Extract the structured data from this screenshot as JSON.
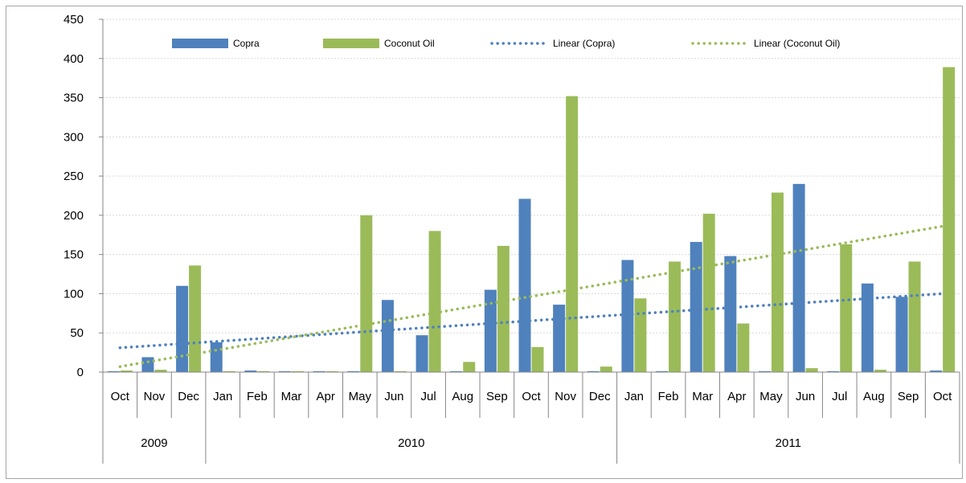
{
  "chart_data": {
    "type": "bar",
    "categories": [
      "Oct",
      "Nov",
      "Dec",
      "Jan",
      "Feb",
      "Mar",
      "Apr",
      "May",
      "Jun",
      "Jul",
      "Aug",
      "Sep",
      "Oct",
      "Nov",
      "Dec",
      "Jan",
      "Feb",
      "Mar",
      "Apr",
      "May",
      "Jun",
      "Jul",
      "Aug",
      "Sep",
      "Oct"
    ],
    "year_groups": [
      {
        "label": "2009",
        "span": 3
      },
      {
        "label": "2010",
        "span": 12
      },
      {
        "label": "2011",
        "span": 10
      }
    ],
    "series": [
      {
        "name": "Copra",
        "color": "#4f81bd",
        "values": [
          0,
          19,
          110,
          38,
          2,
          0,
          0,
          0,
          92,
          47,
          0,
          105,
          221,
          86,
          0,
          143,
          0,
          166,
          148,
          0,
          240,
          0,
          113,
          96,
          2
        ]
      },
      {
        "name": "Coconut Oil",
        "color": "#9bbb59",
        "values": [
          2,
          3,
          136,
          0,
          0,
          0,
          0,
          200,
          0,
          180,
          13,
          161,
          32,
          352,
          7,
          94,
          141,
          202,
          62,
          229,
          5,
          163,
          3,
          141,
          389
        ]
      }
    ],
    "trendlines": [
      {
        "name": "Linear (Copra)",
        "color": "#4f81bd",
        "start": 31,
        "end": 100
      },
      {
        "name": "Linear (Coconut Oil)",
        "color": "#9bbb59",
        "start": 7,
        "end": 186
      }
    ],
    "yticks": [
      0,
      50,
      100,
      150,
      200,
      250,
      300,
      350,
      400,
      450
    ],
    "ylim": [
      0,
      450
    ],
    "grid": true,
    "legend_position": "top"
  }
}
